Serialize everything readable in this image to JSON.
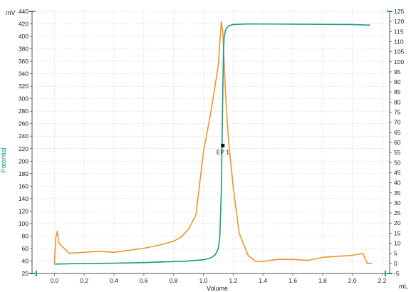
{
  "chart_data": {
    "type": "line",
    "xlabel": "Volume",
    "ylabel": "Potential",
    "y_unit": "mV",
    "x_unit": "mL",
    "xlim": [
      -0.15,
      2.25
    ],
    "ylim": [
      20,
      440
    ],
    "y2lim": [
      -5,
      125
    ],
    "x_ticks": [
      0.0,
      0.2,
      0.4,
      0.6,
      0.8,
      1.0,
      1.2,
      1.4,
      1.6,
      1.8,
      2.0,
      2.2
    ],
    "x_tick_labels": [
      "0.0",
      "0.2",
      "0.4",
      "0.6",
      "0.8",
      "1.0",
      "1.2",
      "1.4",
      "1.6",
      "1.8",
      "2.0",
      "2.2"
    ],
    "y_ticks": [
      20,
      40,
      60,
      80,
      100,
      120,
      140,
      160,
      180,
      200,
      220,
      240,
      260,
      280,
      300,
      320,
      340,
      360,
      380,
      400,
      420,
      440
    ],
    "y2_ticks": [
      -5,
      0,
      5,
      10,
      15,
      20,
      25,
      30,
      35,
      40,
      45,
      50,
      55,
      60,
      65,
      70,
      75,
      80,
      85,
      90,
      95,
      100,
      105,
      110,
      115,
      120,
      125
    ],
    "grid": true,
    "colors": {
      "potential": "#1a9a8c",
      "derivative": "#f0952a",
      "axis_title": "#1a9a8c",
      "marker": "#111111"
    },
    "series": [
      {
        "axis": "left",
        "x": [
          0.0,
          0.2,
          0.4,
          0.6,
          0.8,
          0.9,
          1.0,
          1.05,
          1.08,
          1.1,
          1.11,
          1.12,
          1.125,
          1.13,
          1.135,
          1.14,
          1.15,
          1.17,
          1.2,
          1.3,
          1.6,
          2.0,
          2.12
        ],
        "values": [
          35,
          36,
          36.5,
          37.5,
          39,
          40,
          42,
          45,
          50,
          60,
          78,
          150,
          225,
          310,
          380,
          400,
          411,
          417,
          419,
          420,
          419.5,
          419,
          418
        ]
      },
      {
        "axis": "right",
        "x": [
          0.0,
          0.01,
          0.02,
          0.03,
          0.1,
          0.2,
          0.3,
          0.4,
          0.5,
          0.6,
          0.7,
          0.8,
          0.85,
          0.9,
          0.95,
          1.0,
          1.05,
          1.1,
          1.12,
          1.13,
          1.15,
          1.17,
          1.2,
          1.24,
          1.3,
          1.35,
          1.4,
          1.5,
          1.6,
          1.7,
          1.8,
          2.0,
          2.07,
          2.1,
          2.13
        ],
        "values": [
          0,
          13,
          16,
          10,
          5,
          5.5,
          6,
          5.5,
          6.5,
          7.5,
          9,
          11,
          13,
          17,
          24,
          55,
          75,
          98,
          120,
          115,
          82,
          60,
          38,
          15,
          4,
          1,
          1,
          2,
          2,
          1.5,
          3,
          4,
          5,
          0,
          0
        ]
      }
    ],
    "annotations": [
      {
        "text": "EP 1",
        "x": 1.13,
        "y": 225
      }
    ]
  }
}
